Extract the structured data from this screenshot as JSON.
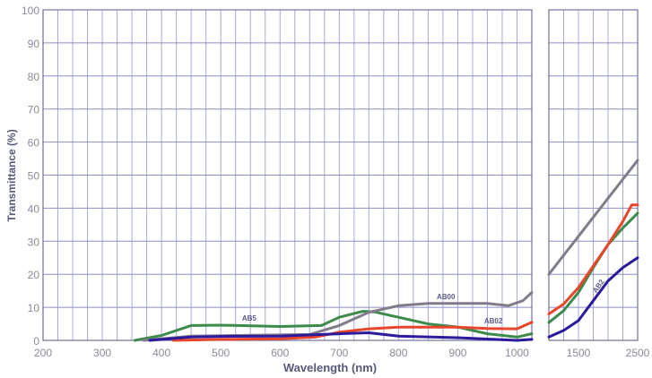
{
  "chart_data": {
    "type": "line",
    "xlabel": "Wavelength (nm)",
    "ylabel": "Transmittance (%)",
    "ylim": [
      0,
      100
    ],
    "yticks": [
      0,
      10,
      20,
      30,
      40,
      50,
      60,
      70,
      80,
      90,
      100
    ],
    "grid": true,
    "panels": [
      {
        "xlim": [
          200,
          1025
        ],
        "xticks": [
          200,
          300,
          400,
          500,
          600,
          700,
          800,
          900,
          1000
        ]
      },
      {
        "xlim": [
          1000,
          2500
        ],
        "xticks": [
          1500,
          2500
        ]
      }
    ],
    "series": [
      {
        "name": "AB5",
        "color": "#3d8a4c",
        "left": [
          [
            355,
            0
          ],
          [
            400,
            1.5
          ],
          [
            450,
            4.5
          ],
          [
            500,
            4.6
          ],
          [
            600,
            4.2
          ],
          [
            670,
            4.5
          ],
          [
            700,
            7
          ],
          [
            740,
            8.8
          ],
          [
            760,
            8.6
          ],
          [
            800,
            7
          ],
          [
            850,
            5
          ],
          [
            900,
            4
          ],
          [
            950,
            2
          ],
          [
            1000,
            1
          ],
          [
            1025,
            2
          ]
        ],
        "right": [
          [
            1000,
            5.4
          ],
          [
            1250,
            9
          ],
          [
            1500,
            14.5
          ],
          [
            1750,
            22
          ],
          [
            2000,
            29
          ],
          [
            2250,
            34
          ],
          [
            2500,
            38.5
          ]
        ]
      },
      {
        "name": "AB00",
        "color": "#817b8a",
        "left": [
          [
            370,
            0
          ],
          [
            450,
            1.3
          ],
          [
            650,
            1.8
          ],
          [
            700,
            4.5
          ],
          [
            750,
            8.5
          ],
          [
            800,
            10.5
          ],
          [
            850,
            11.2
          ],
          [
            950,
            11.2
          ],
          [
            985,
            10.5
          ],
          [
            1010,
            12
          ],
          [
            1025,
            14.5
          ]
        ],
        "right": [
          [
            1000,
            20
          ],
          [
            1500,
            31.5
          ],
          [
            2000,
            43
          ],
          [
            2500,
            54.5
          ]
        ]
      },
      {
        "name": "AB02",
        "color": "#e8452b",
        "left": [
          [
            420,
            0
          ],
          [
            500,
            0.3
          ],
          [
            600,
            0.5
          ],
          [
            660,
            1
          ],
          [
            700,
            2.5
          ],
          [
            750,
            3.5
          ],
          [
            800,
            4
          ],
          [
            900,
            4
          ],
          [
            950,
            3.6
          ],
          [
            1000,
            3.5
          ],
          [
            1025,
            5.5
          ]
        ],
        "right": [
          [
            1000,
            8
          ],
          [
            1250,
            11
          ],
          [
            1500,
            16
          ],
          [
            1750,
            22.5
          ],
          [
            2000,
            29
          ],
          [
            2250,
            36
          ],
          [
            2400,
            41
          ],
          [
            2500,
            41
          ]
        ]
      },
      {
        "name": "AB2",
        "color": "#2b1b9c",
        "left": [
          [
            380,
            0
          ],
          [
            450,
            1
          ],
          [
            500,
            1.2
          ],
          [
            600,
            1.3
          ],
          [
            700,
            2
          ],
          [
            750,
            2.3
          ],
          [
            800,
            1.3
          ],
          [
            900,
            0.8
          ],
          [
            1000,
            0
          ],
          [
            1025,
            0.3
          ]
        ],
        "right": [
          [
            1000,
            1
          ],
          [
            1250,
            3
          ],
          [
            1500,
            6
          ],
          [
            1750,
            12
          ],
          [
            2000,
            18
          ],
          [
            2250,
            22
          ],
          [
            2500,
            25
          ]
        ]
      }
    ],
    "annotations": [
      {
        "text": "AB5",
        "x": 548,
        "y": 6
      },
      {
        "text": "AB00",
        "x": 880,
        "y": 12.5
      },
      {
        "text": "AB02",
        "x": 960,
        "y": 5.2
      },
      {
        "text": "AB2",
        "x": 1870,
        "y": 16,
        "panel": 1
      }
    ]
  }
}
